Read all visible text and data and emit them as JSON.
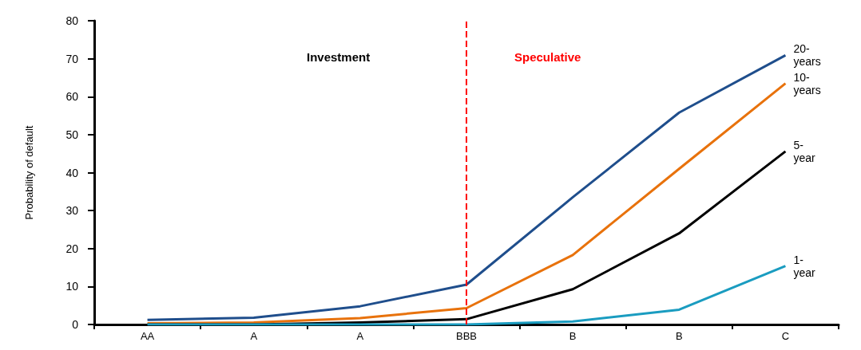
{
  "chart_data": {
    "type": "line",
    "ylabel": "Probability of default",
    "categories": [
      "AA",
      "A",
      "A",
      "BBB",
      "B",
      "B",
      "C"
    ],
    "series": [
      {
        "name": "20-years",
        "color": "#1f4e8c",
        "values": [
          1.2,
          1.8,
          4.8,
          10.5,
          33.5,
          55.8,
          70.9
        ]
      },
      {
        "name": "10-years",
        "color": "#e8720c",
        "values": [
          0.3,
          0.5,
          1.7,
          4.3,
          18.3,
          41,
          63.5
        ]
      },
      {
        "name": "5-year",
        "color": "#000000",
        "values": [
          0,
          0,
          0.5,
          1.4,
          9.3,
          24,
          45.6
        ]
      },
      {
        "name": "1-year",
        "color": "#1a9cc0",
        "values": [
          0,
          0,
          0,
          0,
          0.8,
          3.9,
          15.4
        ]
      }
    ],
    "ylim": [
      0,
      80
    ],
    "yticks": [
      0,
      10,
      20,
      30,
      40,
      50,
      60,
      70,
      80
    ],
    "grid": false,
    "legend": false,
    "marker": "none",
    "line_style": "solid",
    "ref_lines": [
      {
        "axis": "x",
        "value": "BBB",
        "color": "#ff0000",
        "line_style": "dashed"
      }
    ],
    "annotations": [
      "Investment",
      "Speculative"
    ]
  }
}
